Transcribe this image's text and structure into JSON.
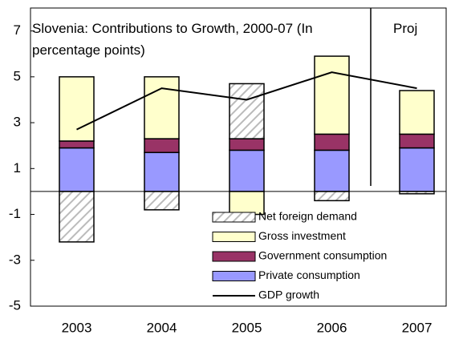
{
  "chart_data": {
    "type": "stacked-bar-line",
    "title": "Slovenia: Contributions to Growth, 2000-07 (In percentage points)",
    "annotation": "Proj",
    "categories": [
      "2003",
      "2004",
      "2005",
      "2006",
      "2007"
    ],
    "series": [
      {
        "name": "Private consumption",
        "color": "#9999ff",
        "values": [
          1.9,
          1.7,
          1.8,
          1.8,
          1.9
        ]
      },
      {
        "name": "Government consumption",
        "color": "#993366",
        "values": [
          0.3,
          0.6,
          0.5,
          0.7,
          0.6
        ]
      },
      {
        "name": "Gross investment",
        "color": "#ffffcc",
        "values": [
          2.8,
          2.7,
          -1.0,
          3.4,
          1.9
        ]
      },
      {
        "name": "Net foreign demand",
        "color": "#bbbbbb",
        "pattern": "hatch",
        "values": [
          -2.2,
          -0.8,
          2.4,
          -0.4,
          -0.1
        ]
      },
      {
        "name": "GDP growth",
        "color": "#000000",
        "type": "line",
        "values": [
          2.7,
          4.5,
          4.0,
          5.2,
          4.5
        ]
      }
    ],
    "ylim": [
      -5,
      8
    ],
    "yticks": [
      -5,
      -3,
      -1,
      1,
      3,
      5,
      7
    ],
    "grid": false
  }
}
